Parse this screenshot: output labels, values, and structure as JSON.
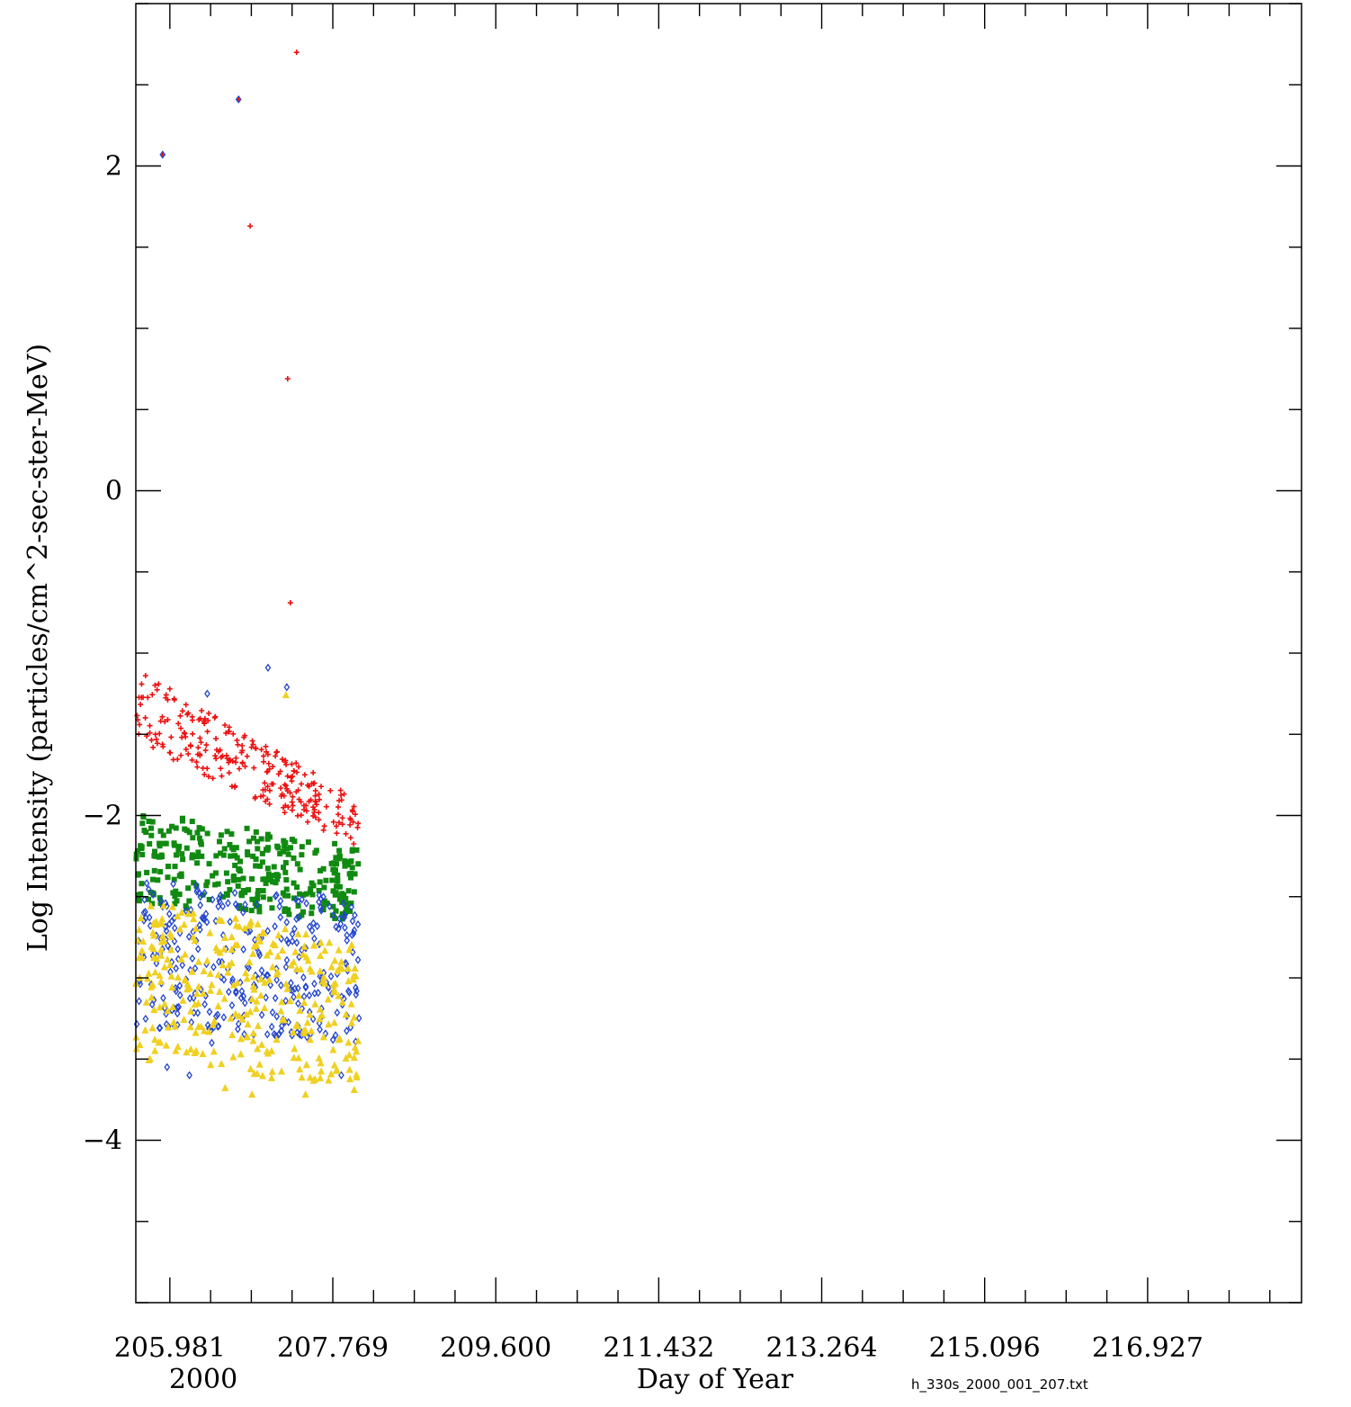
{
  "chart_data": {
    "type": "scatter",
    "title": "",
    "xlabel": "Day of Year",
    "ylabel": "Log Intensity (particles/cm^2-sec-ster-MeV)",
    "year_label": "2000",
    "file_label": "h_330s_2000_001_207.txt",
    "xlim": [
      205.6,
      218.65
    ],
    "ylim": [
      -5,
      3
    ],
    "x_tick_labels": [
      "205.981",
      "207.769",
      "209.600",
      "211.432",
      "213.264",
      "215.096",
      "216.927"
    ],
    "y_tick_labels": [
      "-4",
      "-2",
      "0",
      "2"
    ],
    "grid": false,
    "legend": "none",
    "series": [
      {
        "color": "#ee1111",
        "marker": "plus",
        "outliers": [
          [
            205.9,
            2.07
          ],
          [
            206.75,
            2.41
          ],
          [
            206.88,
            1.63
          ],
          [
            207.3,
            0.69
          ],
          [
            207.4,
            2.7
          ],
          [
            207.33,
            -0.69
          ],
          [
            205.98,
            -1.22
          ],
          [
            206.79,
            -1.57
          ]
        ],
        "band": {
          "x": [
            205.6,
            208.1
          ],
          "y_start": [
            -1.55,
            -1.1
          ],
          "y_end": [
            -2.2,
            -1.9
          ],
          "count": 260
        }
      },
      {
        "color": "#108a10",
        "marker": "square",
        "band": {
          "x": [
            205.6,
            208.1
          ],
          "y_start": [
            -2.55,
            -1.95
          ],
          "y_end": [
            -2.65,
            -2.2
          ],
          "count": 320
        }
      },
      {
        "color": "#2244cc",
        "marker": "diamond",
        "outliers": [
          [
            205.9,
            2.07
          ],
          [
            206.75,
            2.41
          ],
          [
            206.4,
            -1.25
          ],
          [
            207.08,
            -1.09
          ],
          [
            207.29,
            -1.21
          ],
          [
            205.95,
            -3.55
          ],
          [
            206.45,
            -3.4
          ],
          [
            207.9,
            -3.6
          ],
          [
            206.2,
            -3.6
          ]
        ],
        "band": {
          "x": [
            205.6,
            208.1
          ],
          "y_start": [
            -3.3,
            -2.4
          ],
          "y_end": [
            -3.4,
            -2.5
          ],
          "count": 320
        }
      },
      {
        "color": "#f0d020",
        "marker": "triangle",
        "outliers": [
          [
            207.28,
            -1.26
          ],
          [
            206.6,
            -3.68
          ],
          [
            206.9,
            -3.72
          ],
          [
            207.5,
            -3.72
          ]
        ],
        "band": {
          "x": [
            205.6,
            208.1
          ],
          "y_start": [
            -3.5,
            -2.5
          ],
          "y_end": [
            -3.7,
            -2.8
          ],
          "count": 320
        }
      }
    ]
  }
}
